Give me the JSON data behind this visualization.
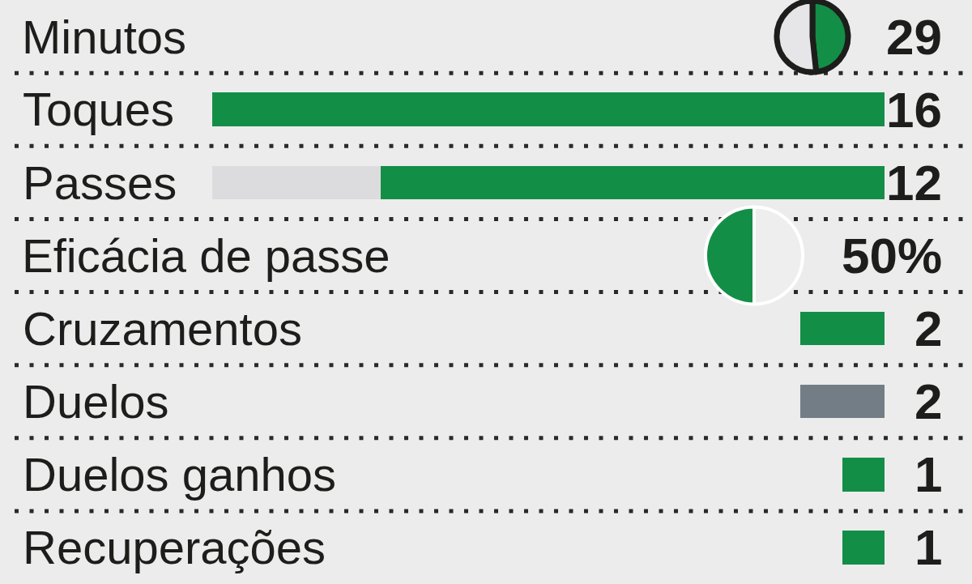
{
  "chart_data": [
    {
      "type": "pie",
      "title": "Minutos",
      "categories": [
        null,
        null
      ],
      "values": [
        29,
        31
      ],
      "colors": [
        "#138e47",
        "#e6e6e8"
      ],
      "value_labels": [
        "29",
        null
      ]
    },
    {
      "type": "bar",
      "orientation": "horizontal",
      "stacked": true,
      "categories": [
        "Toques",
        "Passes"
      ],
      "grid": true,
      "series": [
        {
          "color": "#138e47",
          "values": [
            16,
            12
          ],
          "value_labels": [
            "16",
            "12"
          ]
        },
        {
          "color": "#dcdcde",
          "values": [
            null,
            4
          ]
        }
      ]
    },
    {
      "type": "pie",
      "title": "Eficácia de passe",
      "categories": [
        null,
        null
      ],
      "values": [
        50,
        50
      ],
      "colors": [
        "#eeeeee",
        "#138e47"
      ],
      "annotations": [
        "50%"
      ]
    },
    {
      "type": "bar",
      "orientation": "horizontal",
      "categories": [
        "Cruzamentos",
        "Duelos",
        "Duelos ganhos",
        "Recuperações"
      ],
      "grid": true,
      "values": [
        2,
        2,
        1,
        1
      ],
      "colors": [
        "#138e47",
        "#737d85",
        "#138e47",
        "#138e47"
      ],
      "data_labels": true
    }
  ]
}
